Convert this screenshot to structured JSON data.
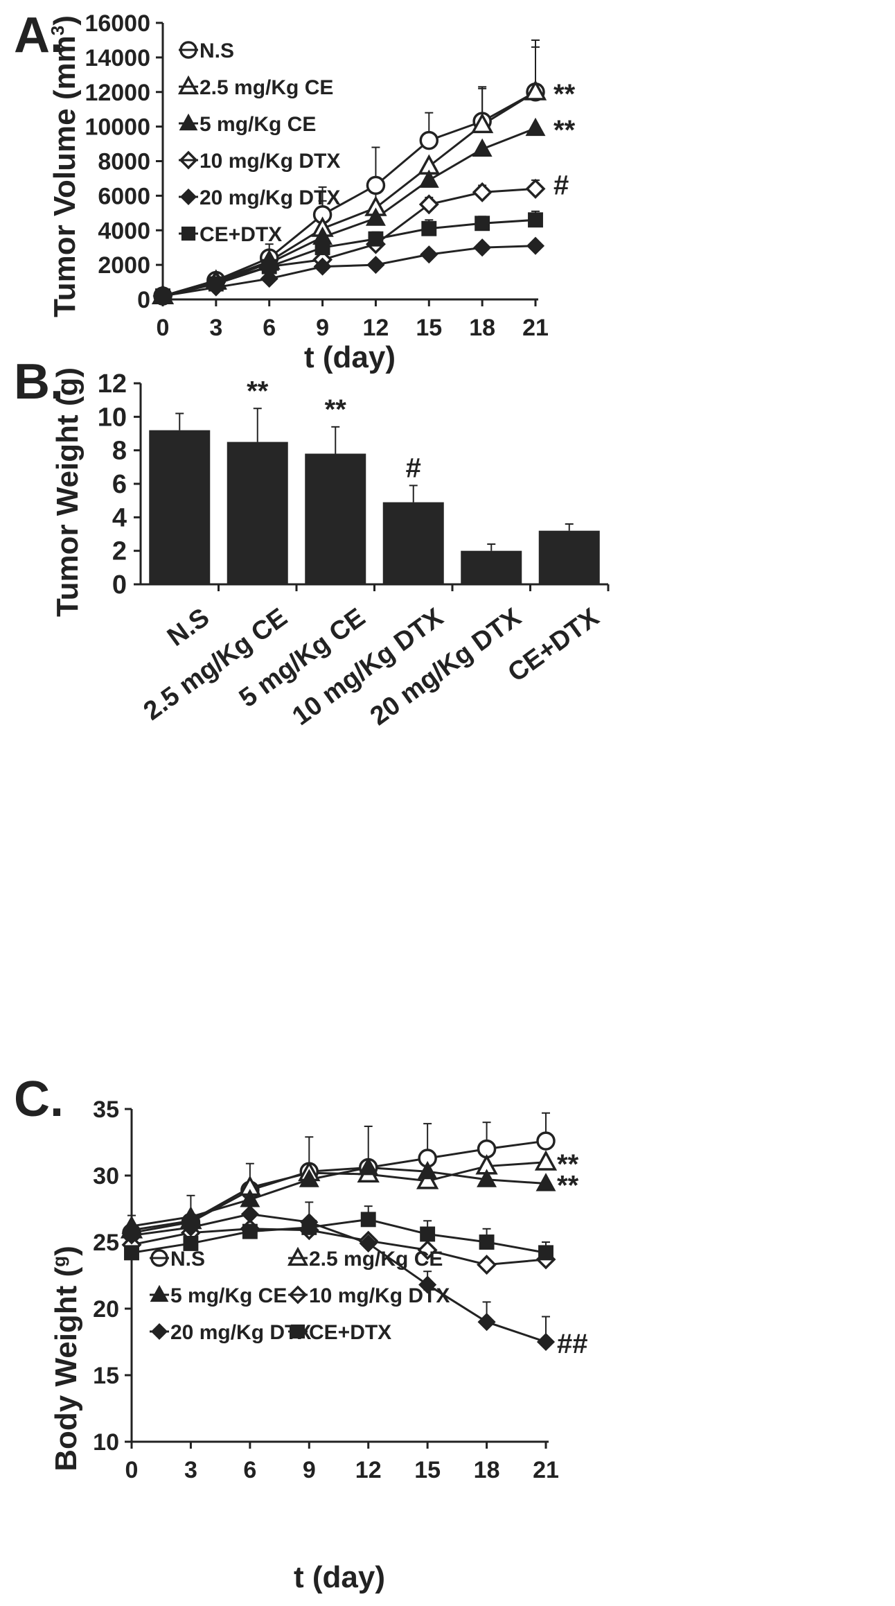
{
  "colors": {
    "ink": "#222222",
    "bar": "#262626",
    "background": "#ffffff"
  },
  "chart_data": [
    {
      "panel": "A.",
      "type": "line",
      "xlabel": "t (day)",
      "ylabel": "Tumor Volume (mm³)",
      "ylabel_main": "Tumor Volume (mm",
      "ylabel_sup": "3",
      "ylabel_close": ")",
      "x": [
        0,
        3,
        6,
        9,
        12,
        15,
        18,
        21
      ],
      "xlim": [
        0,
        21
      ],
      "ylim": [
        0,
        16000
      ],
      "yticks": [
        0,
        2000,
        4000,
        6000,
        8000,
        10000,
        12000,
        14000,
        16000
      ],
      "legend_position": "top-left",
      "series": [
        {
          "name": "N.S",
          "marker": "circle-open",
          "values": [
            200,
            1100,
            2400,
            4900,
            6600,
            9200,
            10300,
            12000
          ],
          "errors": [
            0,
            300,
            800,
            1600,
            2200,
            1600,
            2000,
            3000
          ],
          "label": "**"
        },
        {
          "name": "2.5 mg/Kg CE",
          "marker": "triangle-open",
          "values": [
            200,
            1050,
            2200,
            4100,
            5300,
            7700,
            10100,
            12000
          ],
          "errors": [
            0,
            0,
            0,
            1600,
            1500,
            0,
            2100,
            2600
          ],
          "label": ""
        },
        {
          "name": "5 mg/Kg CE",
          "marker": "triangle-filled",
          "values": [
            200,
            1000,
            2100,
            3600,
            4700,
            6900,
            8700,
            9900
          ],
          "errors": [
            0,
            0,
            0,
            0,
            0,
            0,
            0,
            0
          ],
          "label": "**"
        },
        {
          "name": "10 mg/Kg DTX",
          "marker": "diamond-open",
          "values": [
            200,
            1000,
            1900,
            2300,
            3200,
            5500,
            6200,
            6400
          ],
          "errors": [
            0,
            0,
            0,
            0,
            0,
            400,
            400,
            500
          ],
          "label": "#"
        },
        {
          "name": "20 mg/Kg DTX",
          "marker": "diamond-filled",
          "values": [
            200,
            700,
            1200,
            1900,
            2000,
            2600,
            3000,
            3100
          ],
          "errors": [
            0,
            0,
            0,
            0,
            0,
            0,
            0,
            0
          ],
          "label": ""
        },
        {
          "name": "CE+DTX",
          "marker": "square-filled",
          "values": [
            200,
            900,
            1900,
            3000,
            3500,
            4100,
            4400,
            4600
          ],
          "errors": [
            0,
            0,
            0,
            0,
            400,
            500,
            400,
            500
          ],
          "label": ""
        }
      ]
    },
    {
      "panel": "B.",
      "type": "bar",
      "xlabel": "",
      "ylabel": "Tumor Weight (g)",
      "categories": [
        "N.S",
        "2.5 mg/Kg CE",
        "5 mg/Kg CE",
        "10 mg/Kg DTX",
        "20 mg/Kg DTX",
        "CE+DTX"
      ],
      "values": [
        9.2,
        8.5,
        7.8,
        4.9,
        2.0,
        3.2
      ],
      "errors": [
        1.0,
        2.0,
        1.6,
        1.0,
        0.4,
        0.4
      ],
      "labels": [
        "",
        "**",
        "**",
        "#",
        "",
        ""
      ],
      "ylim": [
        0,
        12
      ],
      "yticks": [
        0,
        2,
        4,
        6,
        8,
        10,
        12
      ]
    },
    {
      "panel": "C.",
      "type": "line",
      "xlabel": "t (day)",
      "ylabel": "Body Weight (g)",
      "ylabel_main": "Body Weight (",
      "ylabel_sup": "g",
      "ylabel_close": ")",
      "x": [
        0,
        3,
        6,
        9,
        12,
        15,
        18,
        21
      ],
      "xlim": [
        0,
        21
      ],
      "ylim": [
        10,
        35
      ],
      "yticks": [
        10,
        15,
        20,
        25,
        30,
        35
      ],
      "legend_position": "bottom-left",
      "series": [
        {
          "name": "N.S",
          "marker": "circle-open",
          "values": [
            25.7,
            26.5,
            28.9,
            30.3,
            30.6,
            31.3,
            32.0,
            32.6
          ],
          "errors": [
            1.3,
            2.0,
            2.0,
            2.6,
            3.1,
            2.6,
            2.0,
            2.1
          ],
          "label": ""
        },
        {
          "name": "2.5 mg/Kg CE",
          "marker": "triangle-open",
          "values": [
            25.9,
            26.6,
            29.1,
            30.2,
            30.1,
            29.6,
            30.7,
            31.0
          ],
          "errors": [
            0,
            0,
            0,
            0,
            0,
            0,
            0,
            0
          ],
          "label": "**"
        },
        {
          "name": "5 mg/Kg CE",
          "marker": "triangle-filled",
          "values": [
            26.2,
            26.9,
            28.2,
            29.7,
            30.6,
            30.3,
            29.7,
            29.4
          ],
          "errors": [
            0,
            0,
            0,
            0,
            0,
            0,
            0,
            0
          ],
          "label": "**"
        },
        {
          "name": "10 mg/Kg DTX",
          "marker": "diamond-open",
          "values": [
            24.8,
            25.7,
            26.0,
            25.9,
            25.1,
            24.4,
            23.3,
            23.7
          ],
          "errors": [
            0,
            0,
            0,
            0,
            0,
            0,
            0,
            0
          ],
          "label": ""
        },
        {
          "name": "20 mg/Kg DTX",
          "marker": "diamond-filled",
          "values": [
            25.5,
            26.1,
            27.1,
            26.5,
            24.9,
            21.8,
            19.0,
            17.5
          ],
          "errors": [
            0,
            0,
            0,
            1.5,
            0,
            1.0,
            1.5,
            1.9
          ],
          "label": "##"
        },
        {
          "name": "CE+DTX",
          "marker": "square-filled",
          "values": [
            24.2,
            24.9,
            25.8,
            26.1,
            26.7,
            25.6,
            25.0,
            24.2
          ],
          "errors": [
            0,
            0,
            0,
            0,
            1.0,
            1.0,
            1.0,
            0.8
          ],
          "label": ""
        }
      ]
    }
  ]
}
